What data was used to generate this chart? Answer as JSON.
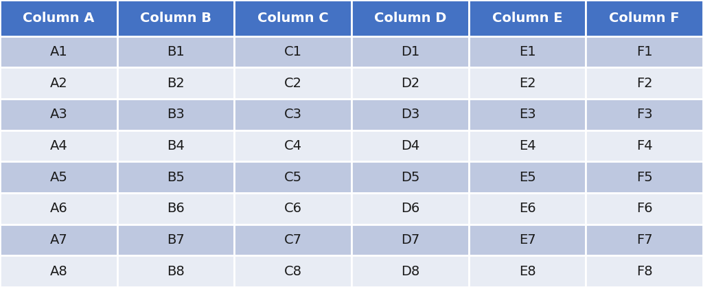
{
  "columns": [
    "Column A",
    "Column B",
    "Column C",
    "Column D",
    "Column E",
    "Column F"
  ],
  "rows": [
    [
      "A1",
      "B1",
      "C1",
      "D1",
      "E1",
      "F1"
    ],
    [
      "A2",
      "B2",
      "C2",
      "D2",
      "E2",
      "F2"
    ],
    [
      "A3",
      "B3",
      "C3",
      "D3",
      "E3",
      "F3"
    ],
    [
      "A4",
      "B4",
      "C4",
      "D4",
      "E4",
      "F4"
    ],
    [
      "A5",
      "B5",
      "C5",
      "D5",
      "E5",
      "F5"
    ],
    [
      "A6",
      "B6",
      "C6",
      "D6",
      "E6",
      "F6"
    ],
    [
      "A7",
      "B7",
      "C7",
      "D7",
      "E7",
      "F7"
    ],
    [
      "A8",
      "B8",
      "C8",
      "D8",
      "E8",
      "F8"
    ]
  ],
  "header_bg_color": "#4472C4",
  "header_text_color": "#FFFFFF",
  "row_color_dark": "#BEC8E0",
  "row_color_light": "#E8ECF4",
  "cell_text_color": "#1A1A1A",
  "border_color": "#FFFFFF",
  "background_color": "#FFFFFF",
  "header_fontsize": 14,
  "cell_fontsize": 14,
  "figsize": [
    10.24,
    4.18
  ],
  "dpi": 100
}
